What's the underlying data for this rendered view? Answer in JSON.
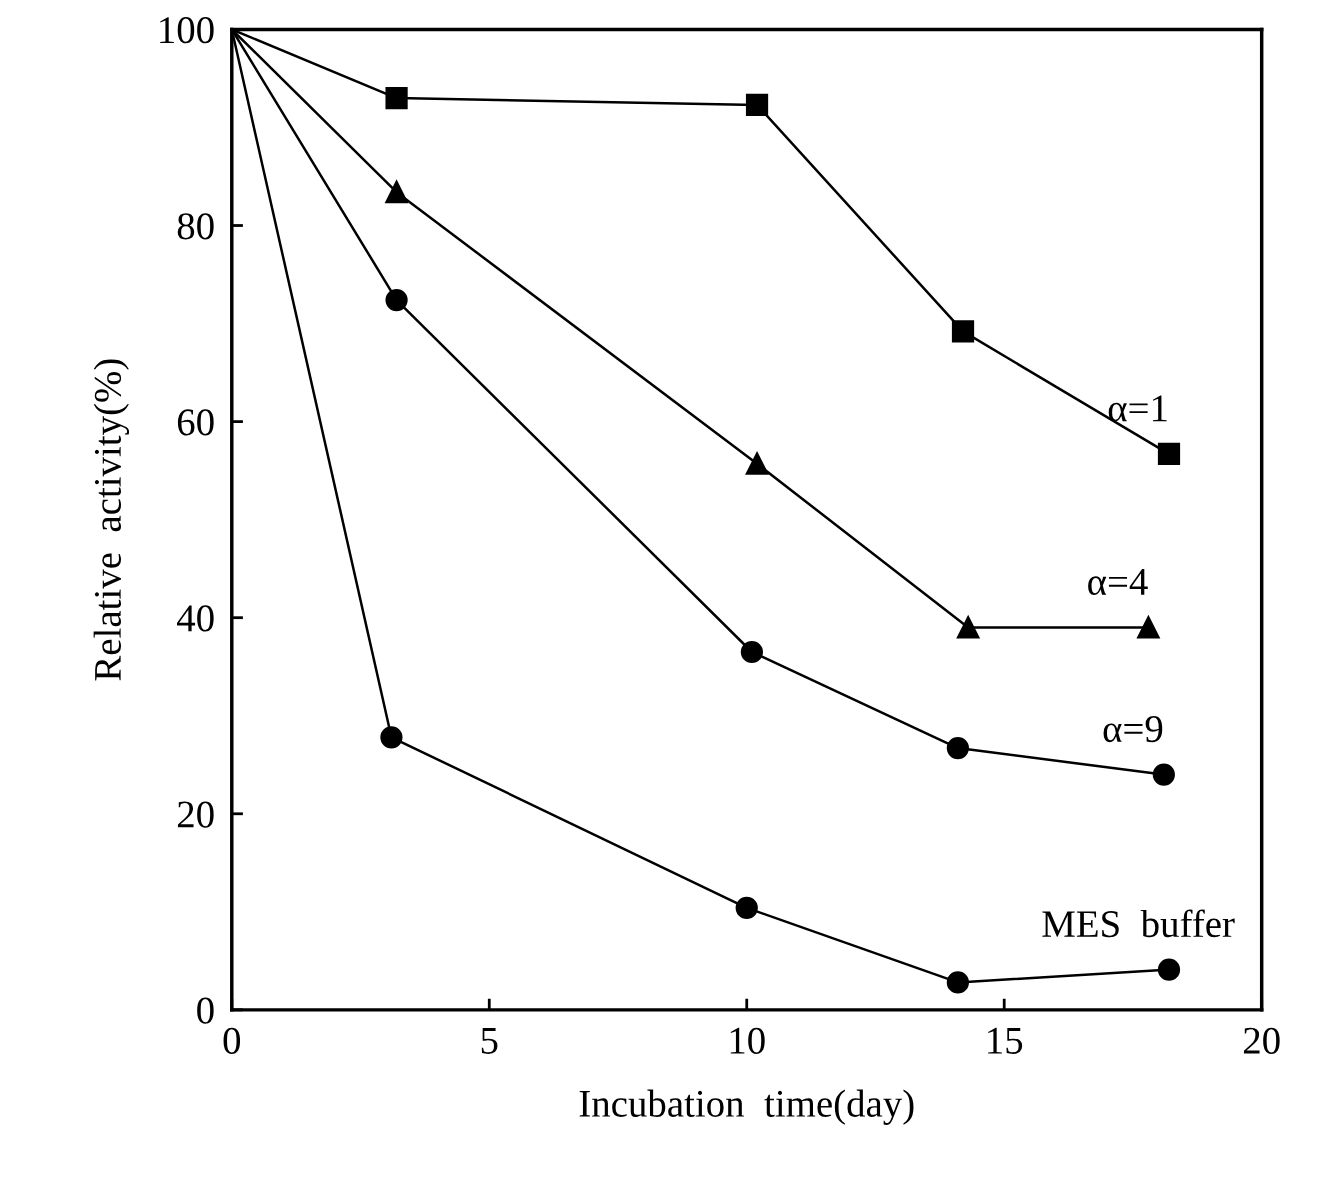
{
  "chart_data": {
    "type": "line",
    "xlabel": "Incubation  time(day)",
    "ylabel": "Relative  activity(%)",
    "xlim": [
      0,
      20
    ],
    "xticks": [
      0,
      5,
      10,
      15,
      20
    ],
    "ylim": [
      0,
      100
    ],
    "yticks": [
      0,
      20,
      40,
      60,
      80,
      100
    ],
    "grid": false,
    "legend": false,
    "line_style": "solid",
    "series": [
      {
        "name": "α=1",
        "color": "#000000",
        "marker": "square",
        "x": [
          0,
          3.2,
          10.2,
          14.2,
          18.2
        ],
        "values": [
          100,
          93,
          92.3,
          69.2,
          56.7
        ]
      },
      {
        "name": "α=4",
        "color": "#000000",
        "marker": "triangle",
        "x": [
          0,
          3.2,
          10.2,
          14.3,
          17.8
        ],
        "values": [
          100,
          83.4,
          55.7,
          39,
          39
        ]
      },
      {
        "name": "α=9",
        "color": "#000000",
        "marker": "circle",
        "x": [
          0,
          3.2,
          10.1,
          14.1,
          18.1
        ],
        "values": [
          100,
          72.4,
          36.5,
          26.7,
          24
        ]
      },
      {
        "name": "MES  buffer",
        "color": "#000000",
        "marker": "circle",
        "x": [
          0,
          3.1,
          10,
          14.1,
          18.2
        ],
        "values": [
          100,
          27.8,
          10.4,
          2.8,
          4.1
        ]
      }
    ]
  }
}
